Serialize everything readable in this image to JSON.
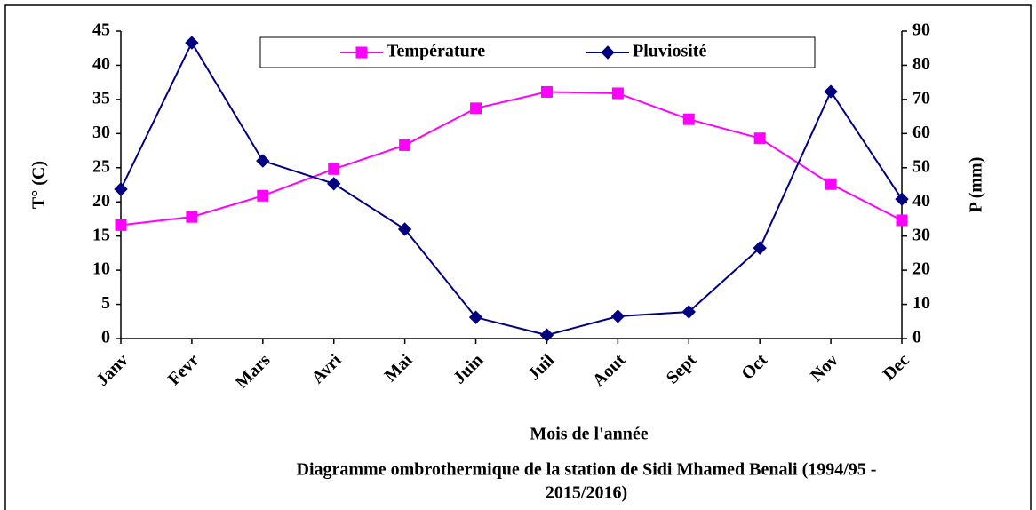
{
  "chart_data": {
    "type": "line",
    "title": [
      "Diagramme ombrothermique de la station de Sidi Mhamed Benali (1994/95 -",
      "2015/2016)"
    ],
    "x_label": "Mois de l'année",
    "y_label": "T° (C)",
    "y2_label": "P (mm)",
    "categories": [
      "Janv",
      "Fevr",
      "Mars",
      "Avri",
      "Mai",
      "Juin",
      "Juil",
      "Aout",
      "Sept",
      "Oct",
      "Nov",
      "Dec"
    ],
    "series": [
      {
        "name": "Température",
        "color": "#ff00ff",
        "marker": "square",
        "values": [
          16.6,
          17.8,
          20.9,
          24.8,
          28.3,
          33.7,
          36.1,
          35.9,
          32.1,
          29.3,
          22.6,
          17.3
        ]
      },
      {
        "name": "Pluviosité",
        "color": "#000080",
        "marker": "diamond",
        "axis": "y2",
        "values": [
          43.7,
          86.6,
          52,
          45.3,
          32,
          6.2,
          1.0,
          6.5,
          7.8,
          26.5,
          72.3,
          40.8
        ]
      }
    ],
    "ylim": [
      0,
      45
    ],
    "yticks": [
      0,
      5,
      10,
      15,
      20,
      25,
      30,
      35,
      40,
      45
    ],
    "y2lim": [
      0,
      90
    ],
    "y2ticks": [
      0,
      10,
      20,
      30,
      40,
      50,
      60,
      70,
      80,
      90
    ],
    "legend": "top"
  }
}
